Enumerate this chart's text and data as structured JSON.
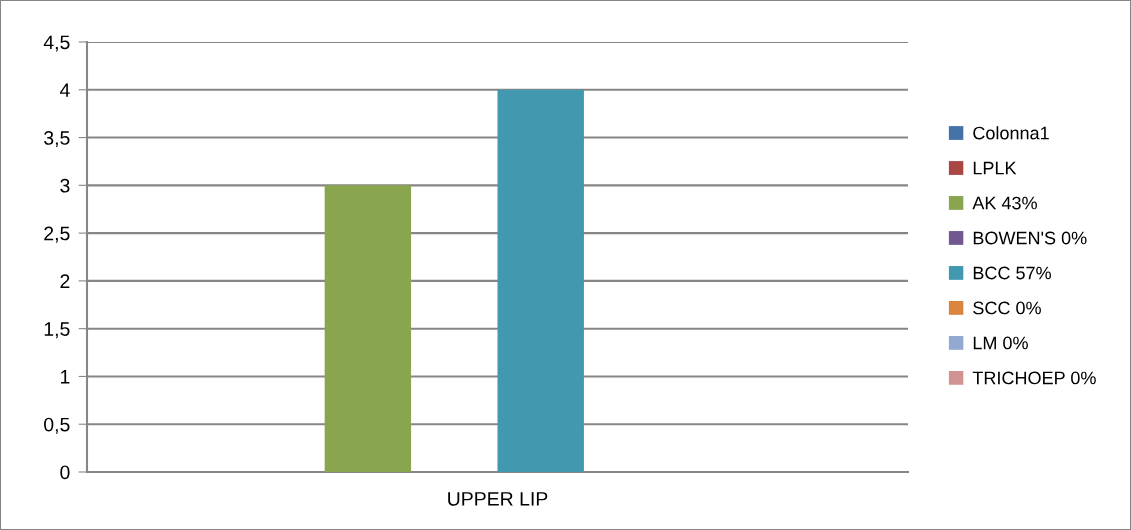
{
  "chart_data": {
    "type": "bar",
    "categories": [
      "UPPER LIP"
    ],
    "series": [
      {
        "name": "Colonna1",
        "color": "#4572a7",
        "values": [
          0
        ]
      },
      {
        "name": "LPLK",
        "color": "#aa4643",
        "values": [
          0
        ]
      },
      {
        "name": "AK 43%",
        "color": "#89a54e",
        "values": [
          3
        ]
      },
      {
        "name": "BOWEN'S 0%",
        "color": "#71588f",
        "values": [
          0
        ]
      },
      {
        "name": "BCC 57%",
        "color": "#4198af",
        "values": [
          4
        ]
      },
      {
        "name": "SCC 0%",
        "color": "#db843d",
        "values": [
          0
        ]
      },
      {
        "name": "LM 0%",
        "color": "#93a9cf",
        "values": [
          0
        ]
      },
      {
        "name": "TRICHOEP 0%",
        "color": "#d19392",
        "values": [
          0
        ]
      }
    ],
    "ylim": [
      0,
      4.5
    ],
    "yticks": [
      0,
      {
        "value": 0.5,
        "label": "0,5"
      },
      1,
      {
        "value": 1.5,
        "label": "1,5"
      },
      2,
      {
        "value": 2.5,
        "label": "2,5"
      },
      3,
      {
        "value": 3.5,
        "label": "3,5"
      },
      4,
      {
        "value": 4.5,
        "label": "4,5"
      }
    ],
    "grid": "y",
    "legend": "right"
  }
}
